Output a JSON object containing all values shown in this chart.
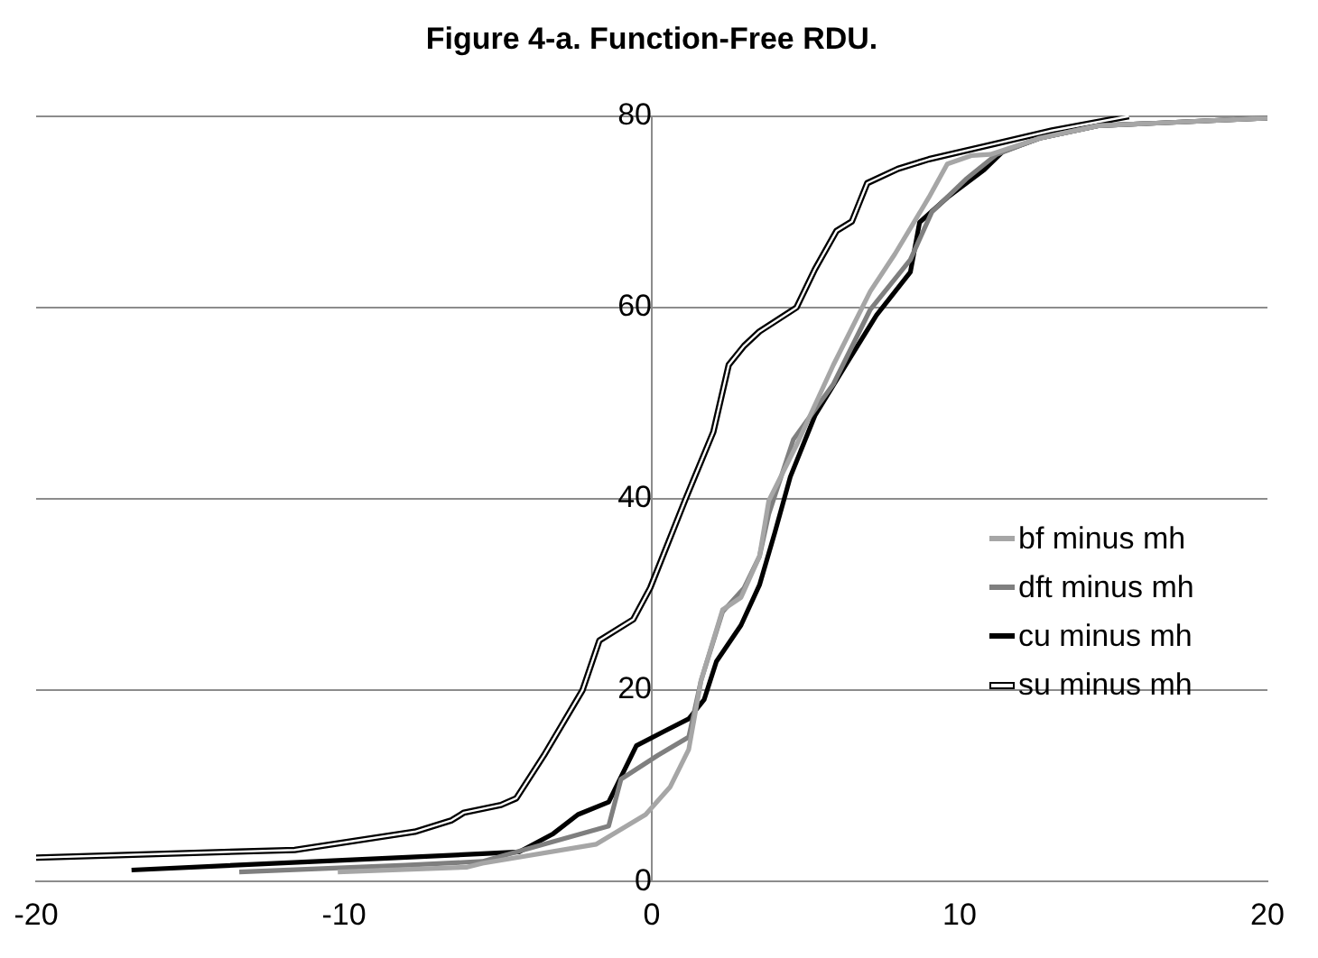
{
  "chart_data": {
    "type": "line",
    "title": "Figure 4-a. Function-Free RDU.",
    "xlim": [
      -20,
      20
    ],
    "xticks": [
      -20,
      -10,
      0,
      10,
      20
    ],
    "ylim": [
      0,
      80
    ],
    "yticks": [
      0,
      20,
      40,
      60,
      80
    ],
    "grid": "y",
    "legend": "right",
    "marker": "none",
    "line_style": "solid",
    "series": [
      {
        "name": "bf minus mh",
        "color": "#a6a6a6",
        "x": [
          -10.2,
          -6,
          -5.5,
          -1.8,
          -0.2,
          0.6,
          1.2,
          1.6,
          2.3,
          2.9,
          3.5,
          3.8,
          4.7,
          5.9,
          7.1,
          7.9,
          9,
          9.6,
          10.4,
          11,
          12.6,
          14.5,
          20
        ],
        "values": [
          1,
          1.5,
          1.9,
          3.9,
          7,
          9.9,
          13.8,
          21,
          28.4,
          29.7,
          34,
          39.8,
          45.6,
          54,
          61.7,
          65.6,
          71.5,
          75,
          75.9,
          76,
          77.7,
          79,
          79.8
        ]
      },
      {
        "name": "dft minus mh",
        "color": "#7f7f7f",
        "x": [
          -13.4,
          -8,
          -5.5,
          -1.4,
          -1,
          0.2,
          1.2,
          1.6,
          2.3,
          3,
          3.5,
          3.8,
          4.6,
          5.9,
          7.1,
          8.4,
          9.1,
          10.2,
          11.2,
          12.6,
          14.5,
          20
        ],
        "values": [
          1,
          1.7,
          2.1,
          5.8,
          10.7,
          13.2,
          15.1,
          21,
          28.2,
          30.7,
          34,
          38.4,
          46.2,
          52,
          59.8,
          65,
          70,
          73.4,
          76,
          77.7,
          79,
          79.8
        ]
      },
      {
        "name": "cu minus mh",
        "color": "#000000",
        "x": [
          -16.9,
          -5.5,
          -4.3,
          -3.2,
          -2.4,
          -1.4,
          -0.5,
          0.4,
          1.2,
          1.7,
          2.1,
          2.9,
          3.5,
          4,
          4.5,
          5.3,
          6.3,
          7.3,
          8.4,
          8.7,
          9.6,
          10.8,
          11.4,
          12.6,
          14.5,
          20
        ],
        "values": [
          1.2,
          2.9,
          3.1,
          5,
          7,
          8.3,
          14.2,
          15.7,
          17,
          19,
          23,
          26.8,
          31,
          36.5,
          42.3,
          48.7,
          54,
          59.2,
          63.7,
          68.9,
          71.5,
          74.4,
          76.3,
          77.7,
          79,
          79.8
        ]
      },
      {
        "name": "su minus mh",
        "color": "#000000",
        "x": [
          -20,
          -11.6,
          -7.7,
          -6.5,
          -6.1,
          -4.9,
          -4.4,
          -3.5,
          -2.25,
          -1.7,
          -0.6,
          -0.05,
          1.1,
          2,
          2.5,
          3,
          3.5,
          4.7,
          5.3,
          6,
          6.5,
          7,
          8,
          9,
          11,
          13,
          15.5
        ],
        "values": [
          2.5,
          3.3,
          5.2,
          6.4,
          7.2,
          8,
          8.7,
          13.2,
          20,
          25.2,
          27.4,
          30.7,
          40,
          47,
          54,
          56,
          57.5,
          60,
          64,
          68,
          69,
          73,
          74.5,
          75.5,
          77,
          78.5,
          80
        ]
      }
    ]
  }
}
